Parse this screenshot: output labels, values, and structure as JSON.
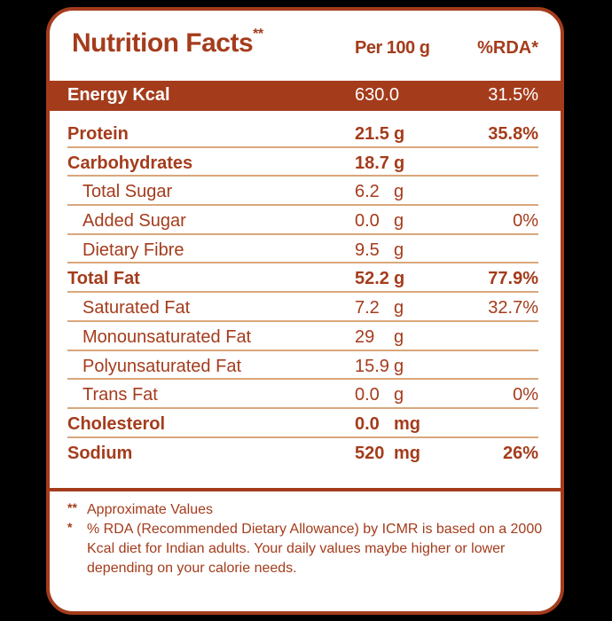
{
  "header": {
    "title": "Nutrition Facts",
    "title_marker": "**",
    "col_per": "Per 100 g",
    "col_rda": "%RDA*"
  },
  "energy": {
    "label": "Energy Kcal",
    "value": "630.0",
    "rda": "31.5%"
  },
  "rows": [
    {
      "label": "Protein",
      "value": "21.5",
      "unit": "g",
      "rda": "35.8%",
      "type": "main"
    },
    {
      "label": "Carbohydrates",
      "value": "18.7",
      "unit": "g",
      "rda": "",
      "type": "main"
    },
    {
      "label": "Total Sugar",
      "value": "6.2",
      "unit": "g",
      "rda": "",
      "type": "sub"
    },
    {
      "label": "Added Sugar",
      "value": "0.0",
      "unit": "g",
      "rda": "0%",
      "type": "sub"
    },
    {
      "label": "Dietary Fibre",
      "value": "9.5",
      "unit": "g",
      "rda": "",
      "type": "sub"
    },
    {
      "label": "Total Fat",
      "value": "52.2",
      "unit": "g",
      "rda": "77.9%",
      "type": "main"
    },
    {
      "label": "Saturated Fat",
      "value": "7.2",
      "unit": "g",
      "rda": "32.7%",
      "type": "sub"
    },
    {
      "label": "Monounsaturated Fat",
      "value": "29",
      "unit": "g",
      "rda": "",
      "type": "sub"
    },
    {
      "label": "Polyunsaturated Fat",
      "value": "15.9",
      "unit": "g",
      "rda": "",
      "type": "sub"
    },
    {
      "label": "Trans Fat",
      "value": "0.0",
      "unit": "g",
      "rda": "0%",
      "type": "sub"
    },
    {
      "label": "Cholesterol",
      "value": "0.0",
      "unit": "mg",
      "rda": "",
      "type": "main"
    },
    {
      "label": "Sodium",
      "value": "520",
      "unit": "mg",
      "rda": "26%",
      "type": "main"
    }
  ],
  "footnotes": [
    {
      "mark": "**",
      "text": "Approximate Values"
    },
    {
      "mark": "*",
      "text": "% RDA (Recommended Dietary Allowance) by ICMR is based on a 2000 Kcal diet for Indian adults. Your daily values maybe higher or lower depending on your calorie needs."
    }
  ],
  "colors": {
    "brand": "#a43c1c",
    "separator": "#d9a77c",
    "background": "#ffffff"
  }
}
